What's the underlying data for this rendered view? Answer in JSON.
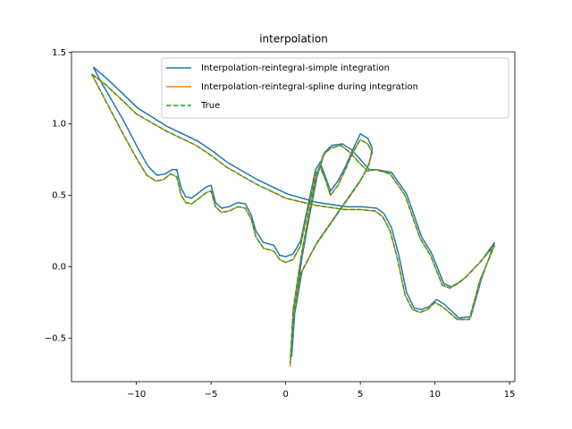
{
  "chart_data": {
    "type": "line",
    "title": "interpolation",
    "xlim": [
      -14.35,
      15.35
    ],
    "ylim": [
      -0.805,
      1.505
    ],
    "xticks": [
      {
        "value": -10,
        "label": "−10"
      },
      {
        "value": -5,
        "label": "−5"
      },
      0,
      5,
      10,
      15
    ],
    "yticks": [
      {
        "value": -0.5,
        "label": "−0.5"
      },
      {
        "value": 0,
        "label": "0.0"
      },
      0.5,
      {
        "value": 1,
        "label": "1.0"
      },
      1.5
    ],
    "legend": "upper right",
    "series": [
      {
        "name": "Interpolation-reintegral-simple integration",
        "color": "#1f77b4",
        "linestyle": "solid",
        "x": [
          -12.9,
          -12.4,
          -11.9,
          -10.9,
          -9.9,
          -9.2,
          -8.6,
          -8.1,
          -7.6,
          -7.3,
          -7,
          -6.7,
          -6.3,
          -5.8,
          -5.3,
          -5,
          -4.7,
          -4.3,
          -3.8,
          -3.2,
          -2.7,
          -2.3,
          -2,
          -1.5,
          -0.8,
          -0.4,
          0,
          0.5,
          1,
          1.5,
          2,
          2.3,
          2.7,
          3,
          3.5,
          4,
          4.5,
          5,
          5.5,
          5.8,
          5.6,
          5.1,
          4.1,
          3.1,
          2.1,
          1.1,
          0.6,
          0.4,
          0.6,
          1.1,
          1.6,
          2.1,
          2.6,
          3.1,
          3.8,
          4.4,
          5.1,
          5.6,
          6.1,
          7.1,
          8.1,
          9.1,
          9.8,
          10.1,
          10.6,
          11.1,
          11.6,
          12.1,
          13.1,
          14,
          13.1,
          12.4,
          11.6,
          10.6,
          10.1,
          9.6,
          9.1,
          8.6,
          8.1,
          7.6,
          7.1,
          6.6,
          6.1,
          5.1,
          4.1,
          2.1,
          0.1,
          -1.9,
          -3.9,
          -4.9,
          -5.9,
          -7.9,
          -9.9,
          -11.9,
          -12.9
        ],
        "values": [
          1.4,
          1.3,
          1.21,
          1.03,
          0.83,
          0.7,
          0.64,
          0.65,
          0.68,
          0.68,
          0.55,
          0.49,
          0.48,
          0.52,
          0.56,
          0.57,
          0.45,
          0.41,
          0.42,
          0.45,
          0.44,
          0.36,
          0.25,
          0.17,
          0.15,
          0.08,
          0.07,
          0.09,
          0.18,
          0.43,
          0.68,
          0.73,
          0.62,
          0.53,
          0.6,
          0.7,
          0.82,
          0.93,
          0.9,
          0.83,
          0.72,
          0.62,
          0.47,
          0.32,
          0.17,
          -0.03,
          -0.33,
          -0.63,
          -0.28,
          0.07,
          0.36,
          0.63,
          0.8,
          0.85,
          0.86,
          0.82,
          0.74,
          0.68,
          0.68,
          0.66,
          0.51,
          0.21,
          0.09,
          0.01,
          -0.12,
          -0.14,
          -0.11,
          -0.07,
          0.04,
          0.17,
          -0.09,
          -0.35,
          -0.36,
          -0.26,
          -0.23,
          -0.28,
          -0.3,
          -0.29,
          -0.18,
          0.07,
          0.27,
          0.37,
          0.41,
          0.42,
          0.42,
          0.45,
          0.51,
          0.61,
          0.73,
          0.81,
          0.88,
          0.98,
          1.11,
          1.31,
          1.4
        ]
      },
      {
        "name": "Interpolation-reintegral-spline during integration",
        "color": "#ff7f0e",
        "linestyle": "solid",
        "x": [
          -13,
          -12.5,
          -12,
          -11,
          -10,
          -9.3,
          -8.7,
          -8.2,
          -7.7,
          -7.3,
          -7,
          -6.7,
          -6.3,
          -5.8,
          -5.3,
          -5,
          -4.7,
          -4.3,
          -3.8,
          -3.2,
          -2.7,
          -2.3,
          -2,
          -1.5,
          -0.8,
          -0.4,
          0,
          0.5,
          1,
          1.5,
          2,
          2.3,
          2.7,
          3,
          3.5,
          4,
          4.5,
          5,
          5.5,
          5.8,
          5.5,
          5,
          4,
          3,
          2,
          1,
          0.5,
          0.3,
          0.5,
          1,
          1.5,
          2,
          2.5,
          3,
          3.7,
          4.3,
          5,
          5.5,
          6,
          7,
          8,
          9,
          9.7,
          10,
          10.5,
          11,
          11.5,
          12,
          13,
          14,
          13,
          12.3,
          11.5,
          10.5,
          10,
          9.5,
          9,
          8.5,
          8,
          7.5,
          7,
          6.5,
          6,
          5,
          4,
          2,
          0,
          -2,
          -4,
          -5,
          -6,
          -8,
          -10,
          -12,
          -13
        ],
        "values": [
          1.35,
          1.25,
          1.15,
          0.95,
          0.76,
          0.64,
          0.6,
          0.61,
          0.65,
          0.63,
          0.5,
          0.45,
          0.44,
          0.48,
          0.52,
          0.53,
          0.42,
          0.38,
          0.39,
          0.42,
          0.41,
          0.33,
          0.21,
          0.13,
          0.11,
          0.05,
          0.03,
          0.05,
          0.15,
          0.4,
          0.65,
          0.7,
          0.6,
          0.5,
          0.57,
          0.68,
          0.8,
          0.89,
          0.86,
          0.8,
          0.7,
          0.6,
          0.45,
          0.3,
          0.15,
          -0.05,
          -0.35,
          -0.7,
          -0.3,
          0.05,
          0.34,
          0.61,
          0.78,
          0.83,
          0.85,
          0.8,
          0.72,
          0.67,
          0.68,
          0.65,
          0.5,
          0.2,
          0.08,
          0,
          -0.13,
          -0.15,
          -0.12,
          -0.08,
          0.03,
          0.15,
          -0.1,
          -0.37,
          -0.37,
          -0.28,
          -0.25,
          -0.3,
          -0.32,
          -0.3,
          -0.2,
          0.05,
          0.25,
          0.35,
          0.39,
          0.4,
          0.4,
          0.43,
          0.48,
          0.58,
          0.7,
          0.78,
          0.85,
          0.95,
          1.07,
          1.27,
          1.35
        ]
      },
      {
        "name": "True",
        "color": "#2ca02c",
        "linestyle": "dashed",
        "x": [
          -13,
          -12.5,
          -12,
          -11,
          -10,
          -9.3,
          -8.7,
          -8.2,
          -7.7,
          -7.3,
          -7,
          -6.7,
          -6.3,
          -5.8,
          -5.3,
          -5,
          -4.7,
          -4.3,
          -3.8,
          -3.2,
          -2.7,
          -2.3,
          -2,
          -1.5,
          -0.8,
          -0.4,
          0,
          0.5,
          1,
          1.5,
          2,
          2.3,
          2.7,
          3,
          3.5,
          4,
          4.5,
          5,
          5.5,
          5.8,
          5.5,
          5,
          4,
          3,
          2,
          1,
          0.5,
          0.3,
          0.5,
          1,
          1.5,
          2,
          2.5,
          3,
          3.7,
          4.3,
          5,
          5.5,
          6,
          7,
          8,
          9,
          9.7,
          10,
          10.5,
          11,
          11.5,
          12,
          13,
          14,
          13,
          12.3,
          11.5,
          10.5,
          10,
          9.5,
          9,
          8.5,
          8,
          7.5,
          7,
          6.5,
          6,
          5,
          4,
          2,
          0,
          -2,
          -4,
          -5,
          -6,
          -8,
          -10,
          -12,
          -13
        ],
        "values": [
          1.35,
          1.25,
          1.15,
          0.95,
          0.76,
          0.64,
          0.6,
          0.61,
          0.65,
          0.63,
          0.5,
          0.45,
          0.44,
          0.48,
          0.52,
          0.53,
          0.42,
          0.38,
          0.39,
          0.42,
          0.41,
          0.33,
          0.21,
          0.13,
          0.11,
          0.05,
          0.03,
          0.05,
          0.15,
          0.4,
          0.65,
          0.7,
          0.6,
          0.5,
          0.57,
          0.68,
          0.8,
          0.89,
          0.86,
          0.8,
          0.7,
          0.6,
          0.45,
          0.3,
          0.15,
          -0.05,
          -0.35,
          -0.68,
          -0.3,
          0.05,
          0.34,
          0.61,
          0.78,
          0.83,
          0.85,
          0.8,
          0.72,
          0.67,
          0.68,
          0.65,
          0.5,
          0.2,
          0.08,
          0,
          -0.13,
          -0.15,
          -0.12,
          -0.08,
          0.03,
          0.15,
          -0.1,
          -0.37,
          -0.37,
          -0.28,
          -0.25,
          -0.3,
          -0.32,
          -0.3,
          -0.2,
          0.05,
          0.25,
          0.35,
          0.39,
          0.4,
          0.4,
          0.43,
          0.48,
          0.58,
          0.7,
          0.78,
          0.85,
          0.95,
          1.07,
          1.27,
          1.35
        ]
      }
    ]
  }
}
